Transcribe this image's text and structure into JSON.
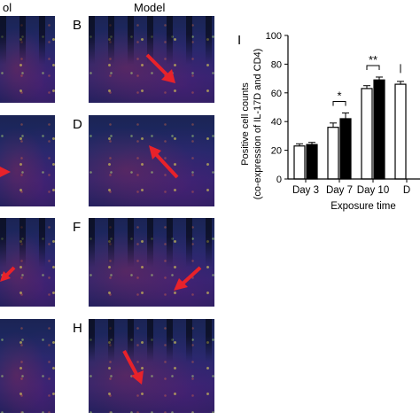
{
  "figure": {
    "header_left": "ol",
    "header_model": "Model",
    "panel_labels": [
      "B",
      "D",
      "F",
      "H"
    ],
    "chart_panel_label": "I"
  },
  "colors": {
    "tissue_blue": "#1f2a6b",
    "arrow_red": "#e8222a",
    "marker_yellow": "#fff050"
  },
  "chart_data": {
    "type": "bar",
    "categories": [
      "Day 3",
      "Day 7",
      "Day 10",
      "D"
    ],
    "series": [
      {
        "fill": "#ffffff",
        "values": [
          23,
          36,
          63,
          66
        ],
        "errors": [
          1.5,
          3,
          2,
          2
        ]
      },
      {
        "fill": "#000000",
        "values": [
          24,
          42,
          69,
          null
        ],
        "errors": [
          1.5,
          4,
          2,
          null
        ]
      }
    ],
    "ylabel_line1": "Positive cell counts",
    "ylabel_line2": "(co-expression of IL-17D and CD4)",
    "xlabel": "Exposure time",
    "ylim": [
      0,
      100
    ],
    "yticks": [
      "0",
      "20",
      "40",
      "60",
      "80",
      "100"
    ],
    "significance": [
      {
        "category": "Day 7",
        "text": "*"
      },
      {
        "category": "Day 10",
        "text": "**"
      }
    ]
  }
}
